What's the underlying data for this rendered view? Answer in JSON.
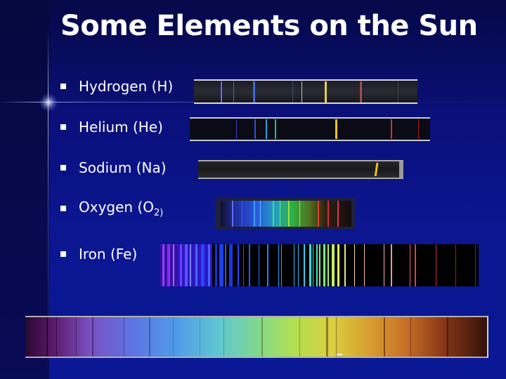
{
  "slide": {
    "title": "Some Elements on the Sun",
    "items": [
      {
        "label": "Hydrogen (H)"
      },
      {
        "label": "Helium (He)"
      },
      {
        "label": "Sodium (Na)"
      },
      {
        "label_main": "Oxygen (O",
        "label_sub": "2)"
      },
      {
        "label": "Iron (Fe)"
      }
    ]
  },
  "colors": {
    "background": "#0a0f7a",
    "text": "#ffffff",
    "accent_line": "#b4beff"
  }
}
